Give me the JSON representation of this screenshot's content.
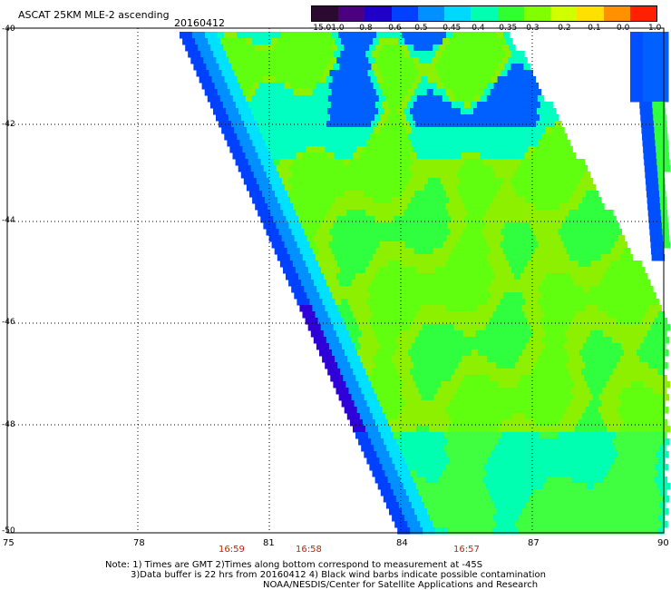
{
  "header": {
    "title": "ASCAT 25KM MLE-2 ascending",
    "date": "20160412"
  },
  "colorbar": {
    "labels": [
      "-15.0",
      "-1.0",
      "-0.8",
      "-0.6",
      "-0.5",
      "-0.45",
      "-0.4",
      "-0.35",
      "-0.3",
      "-0.2",
      "-0.1",
      "0.0",
      "1.0"
    ],
    "colors": [
      "#2a0a2e",
      "#4b0082",
      "#2000c8",
      "#0040ff",
      "#0090ff",
      "#00d8ff",
      "#00ffb0",
      "#30ff30",
      "#80ff00",
      "#d0ff00",
      "#ffe000",
      "#ff9000",
      "#ff2000"
    ]
  },
  "axes": {
    "y_labels": [
      "-40",
      "-42",
      "-44",
      "-46",
      "-48",
      "-50"
    ],
    "x_labels": [
      "75",
      "78",
      "81",
      "84",
      "87",
      "90"
    ],
    "time_labels": [
      "16:59",
      "16:58",
      "16:57"
    ]
  },
  "notes": {
    "line1": "Note: 1) Times are GMT 2)Times along bottom correspond to measurement at -45S",
    "line2": "3)Data buffer is 22 hrs from 20160412 4) Black wind barbs indicate possible contamination",
    "line3": "NOAA/NESDIS/Center for Satellite Applications and Research"
  }
}
